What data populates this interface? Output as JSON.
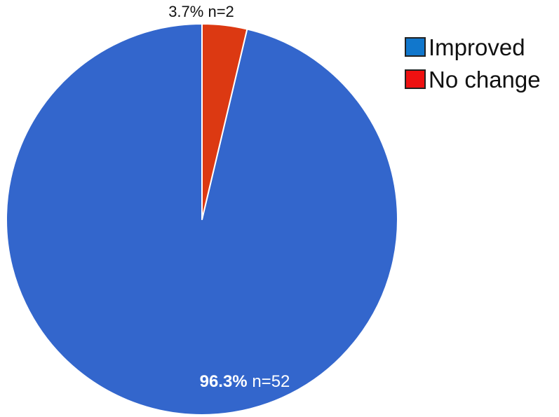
{
  "chart_data": {
    "type": "pie",
    "start_angle_deg": 0,
    "direction": "counterclockwise",
    "slices": [
      {
        "name": "Improved",
        "percent_label": "96.3%",
        "count_label": "n=52",
        "value": 52,
        "color": "#3366cc",
        "legend_color": "#1177cc"
      },
      {
        "name": "No change",
        "percent_label": "3.7%",
        "count_label": "n=2",
        "value": 2,
        "color": "#dc3912",
        "legend_color": "#ee1111"
      }
    ],
    "legend_placement": "top-right"
  }
}
